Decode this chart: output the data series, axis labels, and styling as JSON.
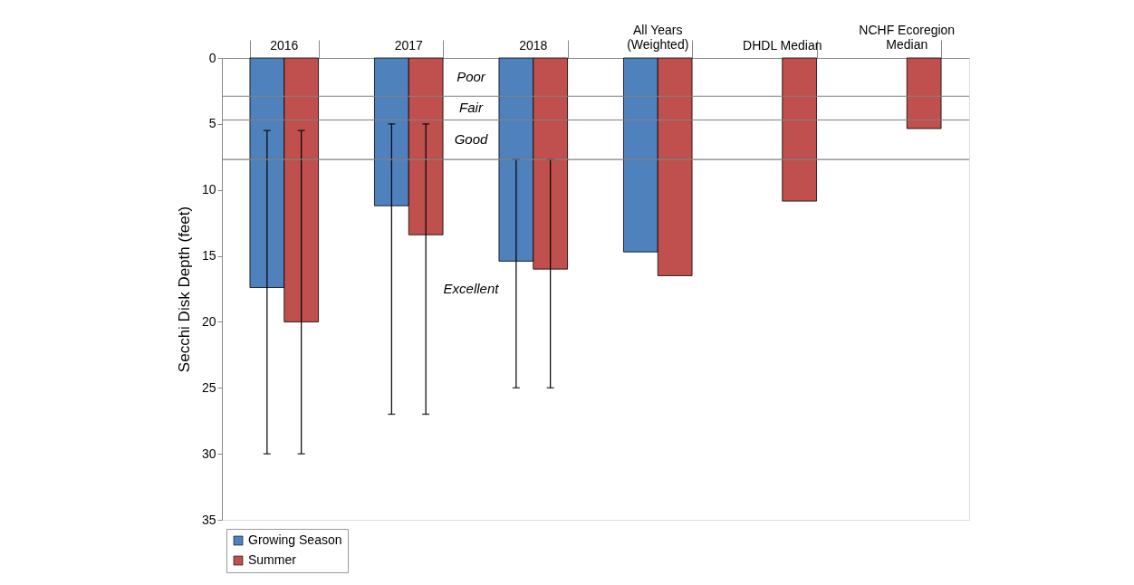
{
  "chart_data": {
    "type": "bar",
    "ylabel": "Secchi Disk Depth (feet)",
    "categories": [
      "2016",
      "2017",
      "2018",
      "All Years (Weighted)",
      "DHDL Median",
      "NCHF Ecoregion Median"
    ],
    "series": [
      {
        "name": "Growing Season",
        "color": "#4f81bd",
        "values": [
          17.4,
          11.2,
          15.4,
          14.7,
          null,
          null
        ],
        "errors": [
          [
            5.5,
            30
          ],
          [
            5,
            27
          ],
          [
            7.7,
            25
          ],
          null,
          null,
          null
        ]
      },
      {
        "name": "Summer",
        "color": "#c0504d",
        "values": [
          20.0,
          13.4,
          16.0,
          16.5,
          10.85,
          5.35
        ],
        "errors": [
          [
            5.5,
            30
          ],
          [
            5,
            27
          ],
          [
            7.7,
            25
          ],
          null,
          null,
          null
        ]
      }
    ],
    "ylim": [
      35,
      0
    ],
    "yticks": [
      0,
      5,
      10,
      15,
      20,
      25,
      30,
      35
    ],
    "ref_lines": [
      {
        "axis": "y",
        "value": 2.9,
        "color": "#808080"
      },
      {
        "axis": "y",
        "value": 4.7,
        "color": "#808080"
      },
      {
        "axis": "y",
        "value": 7.7,
        "color": "#808080"
      }
    ],
    "annotations": [
      "Poor",
      "Fair",
      "Good",
      "Excellent"
    ],
    "grid": false,
    "legend": "bottom left"
  }
}
